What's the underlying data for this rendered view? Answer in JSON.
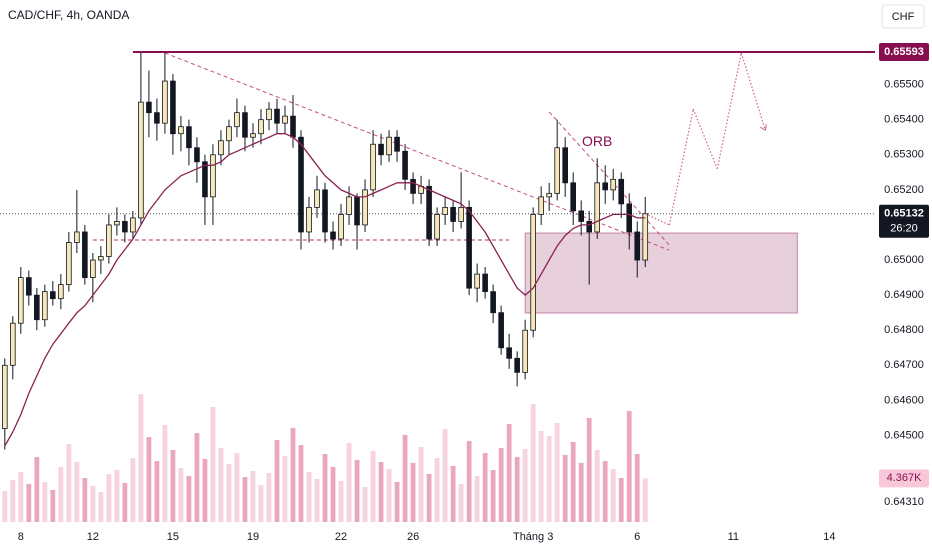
{
  "chart_data": {
    "type": "candlestick",
    "title": "CAD/CHF, 4h, OANDA",
    "currency": "CHF",
    "candles": [
      [
        0.6452,
        0.6472,
        0.6446,
        0.647
      ],
      [
        0.647,
        0.6484,
        0.6466,
        0.6482
      ],
      [
        0.6482,
        0.6498,
        0.6479,
        0.6495
      ],
      [
        0.6495,
        0.6497,
        0.6487,
        0.649
      ],
      [
        0.649,
        0.6492,
        0.648,
        0.6483
      ],
      [
        0.6483,
        0.6493,
        0.6481,
        0.6491
      ],
      [
        0.6491,
        0.6494,
        0.6487,
        0.6489
      ],
      [
        0.6489,
        0.6496,
        0.6486,
        0.6493
      ],
      [
        0.6493,
        0.6508,
        0.6491,
        0.6505
      ],
      [
        0.6505,
        0.652,
        0.6502,
        0.6508
      ],
      [
        0.6508,
        0.651,
        0.6493,
        0.6495
      ],
      [
        0.6495,
        0.6502,
        0.6488,
        0.65
      ],
      [
        0.65,
        0.6504,
        0.6496,
        0.6501
      ],
      [
        0.6501,
        0.6513,
        0.6499,
        0.651
      ],
      [
        0.651,
        0.6515,
        0.6507,
        0.6511
      ],
      [
        0.6511,
        0.6513,
        0.6505,
        0.6508
      ],
      [
        0.6508,
        0.6514,
        0.6506,
        0.6512
      ],
      [
        0.6512,
        0.6559,
        0.651,
        0.6545
      ],
      [
        0.6545,
        0.6554,
        0.6535,
        0.6542
      ],
      [
        0.6542,
        0.6546,
        0.6534,
        0.6539
      ],
      [
        0.6539,
        0.6559,
        0.6536,
        0.6551
      ],
      [
        0.6551,
        0.6553,
        0.653,
        0.6536
      ],
      [
        0.6536,
        0.6541,
        0.6531,
        0.6538
      ],
      [
        0.6538,
        0.654,
        0.6527,
        0.6532
      ],
      [
        0.6532,
        0.6535,
        0.6522,
        0.6528
      ],
      [
        0.6528,
        0.653,
        0.651,
        0.6518
      ],
      [
        0.6518,
        0.6533,
        0.651,
        0.653
      ],
      [
        0.653,
        0.6537,
        0.6527,
        0.6534
      ],
      [
        0.6534,
        0.654,
        0.653,
        0.6538
      ],
      [
        0.6538,
        0.6546,
        0.6535,
        0.6542
      ],
      [
        0.6542,
        0.6544,
        0.6531,
        0.6535
      ],
      [
        0.6535,
        0.6539,
        0.6532,
        0.6536
      ],
      [
        0.6536,
        0.6543,
        0.6533,
        0.654
      ],
      [
        0.654,
        0.6545,
        0.6537,
        0.6543
      ],
      [
        0.6543,
        0.6546,
        0.6536,
        0.6539
      ],
      [
        0.6539,
        0.6544,
        0.6536,
        0.6541
      ],
      [
        0.6541,
        0.6547,
        0.6532,
        0.6535
      ],
      [
        0.6535,
        0.6537,
        0.6503,
        0.6508
      ],
      [
        0.6508,
        0.6518,
        0.6505,
        0.6515
      ],
      [
        0.6515,
        0.6524,
        0.6512,
        0.652
      ],
      [
        0.652,
        0.6522,
        0.6505,
        0.6508
      ],
      [
        0.6508,
        0.6511,
        0.6503,
        0.6506
      ],
      [
        0.6506,
        0.6516,
        0.6504,
        0.6513
      ],
      [
        0.6513,
        0.6521,
        0.651,
        0.6518
      ],
      [
        0.6518,
        0.6519,
        0.6503,
        0.651
      ],
      [
        0.651,
        0.6523,
        0.6508,
        0.652
      ],
      [
        0.652,
        0.6537,
        0.6518,
        0.6533
      ],
      [
        0.6533,
        0.6536,
        0.6527,
        0.653
      ],
      [
        0.653,
        0.6537,
        0.6528,
        0.6535
      ],
      [
        0.6535,
        0.6537,
        0.6528,
        0.6531
      ],
      [
        0.6531,
        0.6533,
        0.652,
        0.6523
      ],
      [
        0.6523,
        0.6525,
        0.6516,
        0.6519
      ],
      [
        0.6519,
        0.6524,
        0.6516,
        0.6521
      ],
      [
        0.6521,
        0.6523,
        0.6504,
        0.6506
      ],
      [
        0.6506,
        0.6515,
        0.6504,
        0.6513
      ],
      [
        0.6513,
        0.6518,
        0.651,
        0.6515
      ],
      [
        0.6515,
        0.6517,
        0.6508,
        0.6511
      ],
      [
        0.6511,
        0.6525,
        0.6509,
        0.6515
      ],
      [
        0.6515,
        0.6517,
        0.649,
        0.6492
      ],
      [
        0.6492,
        0.6499,
        0.6488,
        0.6496
      ],
      [
        0.6496,
        0.6498,
        0.6489,
        0.6491
      ],
      [
        0.6491,
        0.6493,
        0.6482,
        0.6485
      ],
      [
        0.6485,
        0.6487,
        0.6473,
        0.6475
      ],
      [
        0.6475,
        0.6479,
        0.6469,
        0.6472
      ],
      [
        0.6472,
        0.6474,
        0.6464,
        0.6468
      ],
      [
        0.6468,
        0.6483,
        0.6466,
        0.648
      ],
      [
        0.648,
        0.6515,
        0.6478,
        0.6513
      ],
      [
        0.6513,
        0.6521,
        0.651,
        0.6518
      ],
      [
        0.6518,
        0.6522,
        0.6514,
        0.6519
      ],
      [
        0.6519,
        0.654,
        0.6517,
        0.6532
      ],
      [
        0.6532,
        0.6535,
        0.6518,
        0.6522
      ],
      [
        0.6522,
        0.6525,
        0.651,
        0.6514
      ],
      [
        0.6514,
        0.6517,
        0.6507,
        0.6511
      ],
      [
        0.6511,
        0.6514,
        0.6493,
        0.6508
      ],
      [
        0.6508,
        0.6529,
        0.6506,
        0.6522
      ],
      [
        0.6522,
        0.6527,
        0.6516,
        0.652
      ],
      [
        0.652,
        0.6526,
        0.6517,
        0.6523
      ],
      [
        0.6523,
        0.6525,
        0.6512,
        0.6516
      ],
      [
        0.6516,
        0.6519,
        0.6503,
        0.6508
      ],
      [
        0.6508,
        0.6511,
        0.6495,
        0.65
      ],
      [
        0.65,
        0.6518,
        0.6498,
        0.65132
      ]
    ],
    "ma": [
      0.6447,
      0.6451,
      0.6456,
      0.6462,
      0.6467,
      0.6472,
      0.6476,
      0.6479,
      0.6482,
      0.6485,
      0.6487,
      0.649,
      0.6493,
      0.6496,
      0.65,
      0.6503,
      0.6506,
      0.651,
      0.6514,
      0.6517,
      0.652,
      0.6522,
      0.6524,
      0.6525,
      0.6526,
      0.6527,
      0.6527,
      0.6528,
      0.653,
      0.6531,
      0.6532,
      0.6533,
      0.6534,
      0.6535,
      0.6536,
      0.6536,
      0.6535,
      0.6533,
      0.653,
      0.6527,
      0.6524,
      0.6522,
      0.652,
      0.6519,
      0.6518,
      0.6518,
      0.6519,
      0.652,
      0.6521,
      0.6522,
      0.6522,
      0.6522,
      0.6521,
      0.652,
      0.6519,
      0.6518,
      0.6517,
      0.6516,
      0.6514,
      0.6511,
      0.6508,
      0.6504,
      0.65,
      0.6496,
      0.6492,
      0.649,
      0.6492,
      0.6496,
      0.65,
      0.6504,
      0.6507,
      0.6509,
      0.651,
      0.651,
      0.6511,
      0.6512,
      0.6513,
      0.6513,
      0.6513,
      0.6512,
      0.6512
    ],
    "ma_color": "#8b2252",
    "volume": [
      3.1,
      4.2,
      5.0,
      3.8,
      6.5,
      4.0,
      3.2,
      5.5,
      7.8,
      6.0,
      4.4,
      3.6,
      3.0,
      4.8,
      5.2,
      3.9,
      6.4,
      12.8,
      8.5,
      6.1,
      9.7,
      7.2,
      5.4,
      4.6,
      8.9,
      6.3,
      11.5,
      7.4,
      5.8,
      6.9,
      4.5,
      5.1,
      3.7,
      4.9,
      8.2,
      6.6,
      9.4,
      7.7,
      5.0,
      4.3,
      6.8,
      5.5,
      4.1,
      7.9,
      6.2,
      3.5,
      7.1,
      6.0,
      5.3,
      4.0,
      8.7,
      5.9,
      7.5,
      4.8,
      6.4,
      9.3,
      5.6,
      3.8,
      8.1,
      4.6,
      6.9,
      5.2,
      7.4,
      9.8,
      6.5,
      7.3,
      11.8,
      9.1,
      8.6,
      9.9,
      6.7,
      8.0,
      5.9,
      10.4,
      7.2,
      6.1,
      5.3,
      4.4,
      11.1,
      6.8,
      4.367
    ],
    "volume_label": "4.367K",
    "volume_ylim": [
      0,
      13.5
    ],
    "countdown": "26:20",
    "resistance": 0.65593,
    "support": {
      "from": 11,
      "to": 63,
      "value": 0.65057
    },
    "trendlines": [
      [
        [
          20,
          0.6559
        ],
        [
          83,
          0.65028
        ]
      ],
      [
        [
          68,
          0.65422
        ],
        [
          83,
          0.65043
        ]
      ]
    ],
    "zone": {
      "x": [
        65,
        99
      ],
      "y": [
        0.64849,
        0.65077
      ]
    },
    "projection": [
      [
        80,
        0.65132
      ],
      [
        83,
        0.651
      ],
      [
        86,
        0.6543
      ],
      [
        89,
        0.6526
      ],
      [
        92,
        0.6559
      ],
      [
        95,
        0.6537
      ]
    ],
    "annotation": {
      "text": "ORB",
      "x": 74,
      "y": 0.65336
    },
    "grid": false,
    "xlim": [
      -0.6,
      108.7
    ],
    "ylim": [
      0.64245,
      0.65741
    ],
    "yticks": [
      {
        "value": 0.655,
        "label": "0.65500"
      },
      {
        "value": 0.654,
        "label": "0.65400"
      },
      {
        "value": 0.653,
        "label": "0.65300"
      },
      {
        "value": 0.652,
        "label": "0.65200"
      },
      {
        "value": 0.65,
        "label": "0.65000"
      },
      {
        "value": 0.649,
        "label": "0.64900"
      },
      {
        "value": 0.648,
        "label": "0.64800"
      },
      {
        "value": 0.647,
        "label": "0.64700"
      },
      {
        "value": 0.646,
        "label": "0.64600"
      },
      {
        "value": 0.645,
        "label": "0.64500"
      },
      {
        "value": 0.6431,
        "label": "0.64310"
      }
    ],
    "xticks": [
      {
        "value": 2,
        "label": "8"
      },
      {
        "value": 11,
        "label": "12"
      },
      {
        "value": 21,
        "label": "15"
      },
      {
        "value": 31,
        "label": "19"
      },
      {
        "value": 42,
        "label": "22"
      },
      {
        "value": 51,
        "label": "26"
      },
      {
        "value": 66,
        "label": "Tháng 3"
      },
      {
        "value": 79,
        "label": "6"
      },
      {
        "value": 91,
        "label": "11"
      },
      {
        "value": 103,
        "label": "14"
      }
    ]
  }
}
